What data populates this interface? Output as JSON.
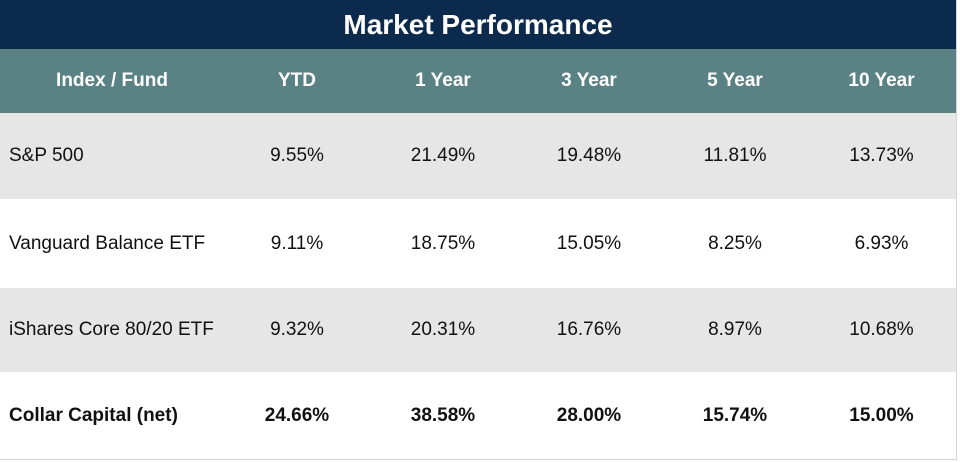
{
  "title": "Market Performance",
  "columns": [
    "Index / Fund",
    "YTD",
    "1 Year",
    "3 Year",
    "5 Year",
    "10 Year"
  ],
  "rows": [
    {
      "name": "S&P 500",
      "ytd": "9.55%",
      "y1": "21.49%",
      "y3": "19.48%",
      "y5": "11.81%",
      "y10": "13.73%"
    },
    {
      "name": "Vanguard Balance ETF",
      "ytd": "9.11%",
      "y1": "18.75%",
      "y3": "15.05%",
      "y5": "8.25%",
      "y10": "6.93%"
    },
    {
      "name": "iShares Core 80/20 ETF",
      "ytd": "9.32%",
      "y1": "20.31%",
      "y3": "16.76%",
      "y5": "8.97%",
      "y10": "10.68%"
    },
    {
      "name": "Collar Capital (net)",
      "ytd": "24.66%",
      "y1": "38.58%",
      "y3": "28.00%",
      "y5": "15.74%",
      "y10": "15.00%"
    }
  ],
  "colors": {
    "title_bg": "#0b2a4c",
    "header_bg": "#5a8284",
    "row_shade": "#e6e6e6",
    "row_plain": "#ffffff"
  }
}
